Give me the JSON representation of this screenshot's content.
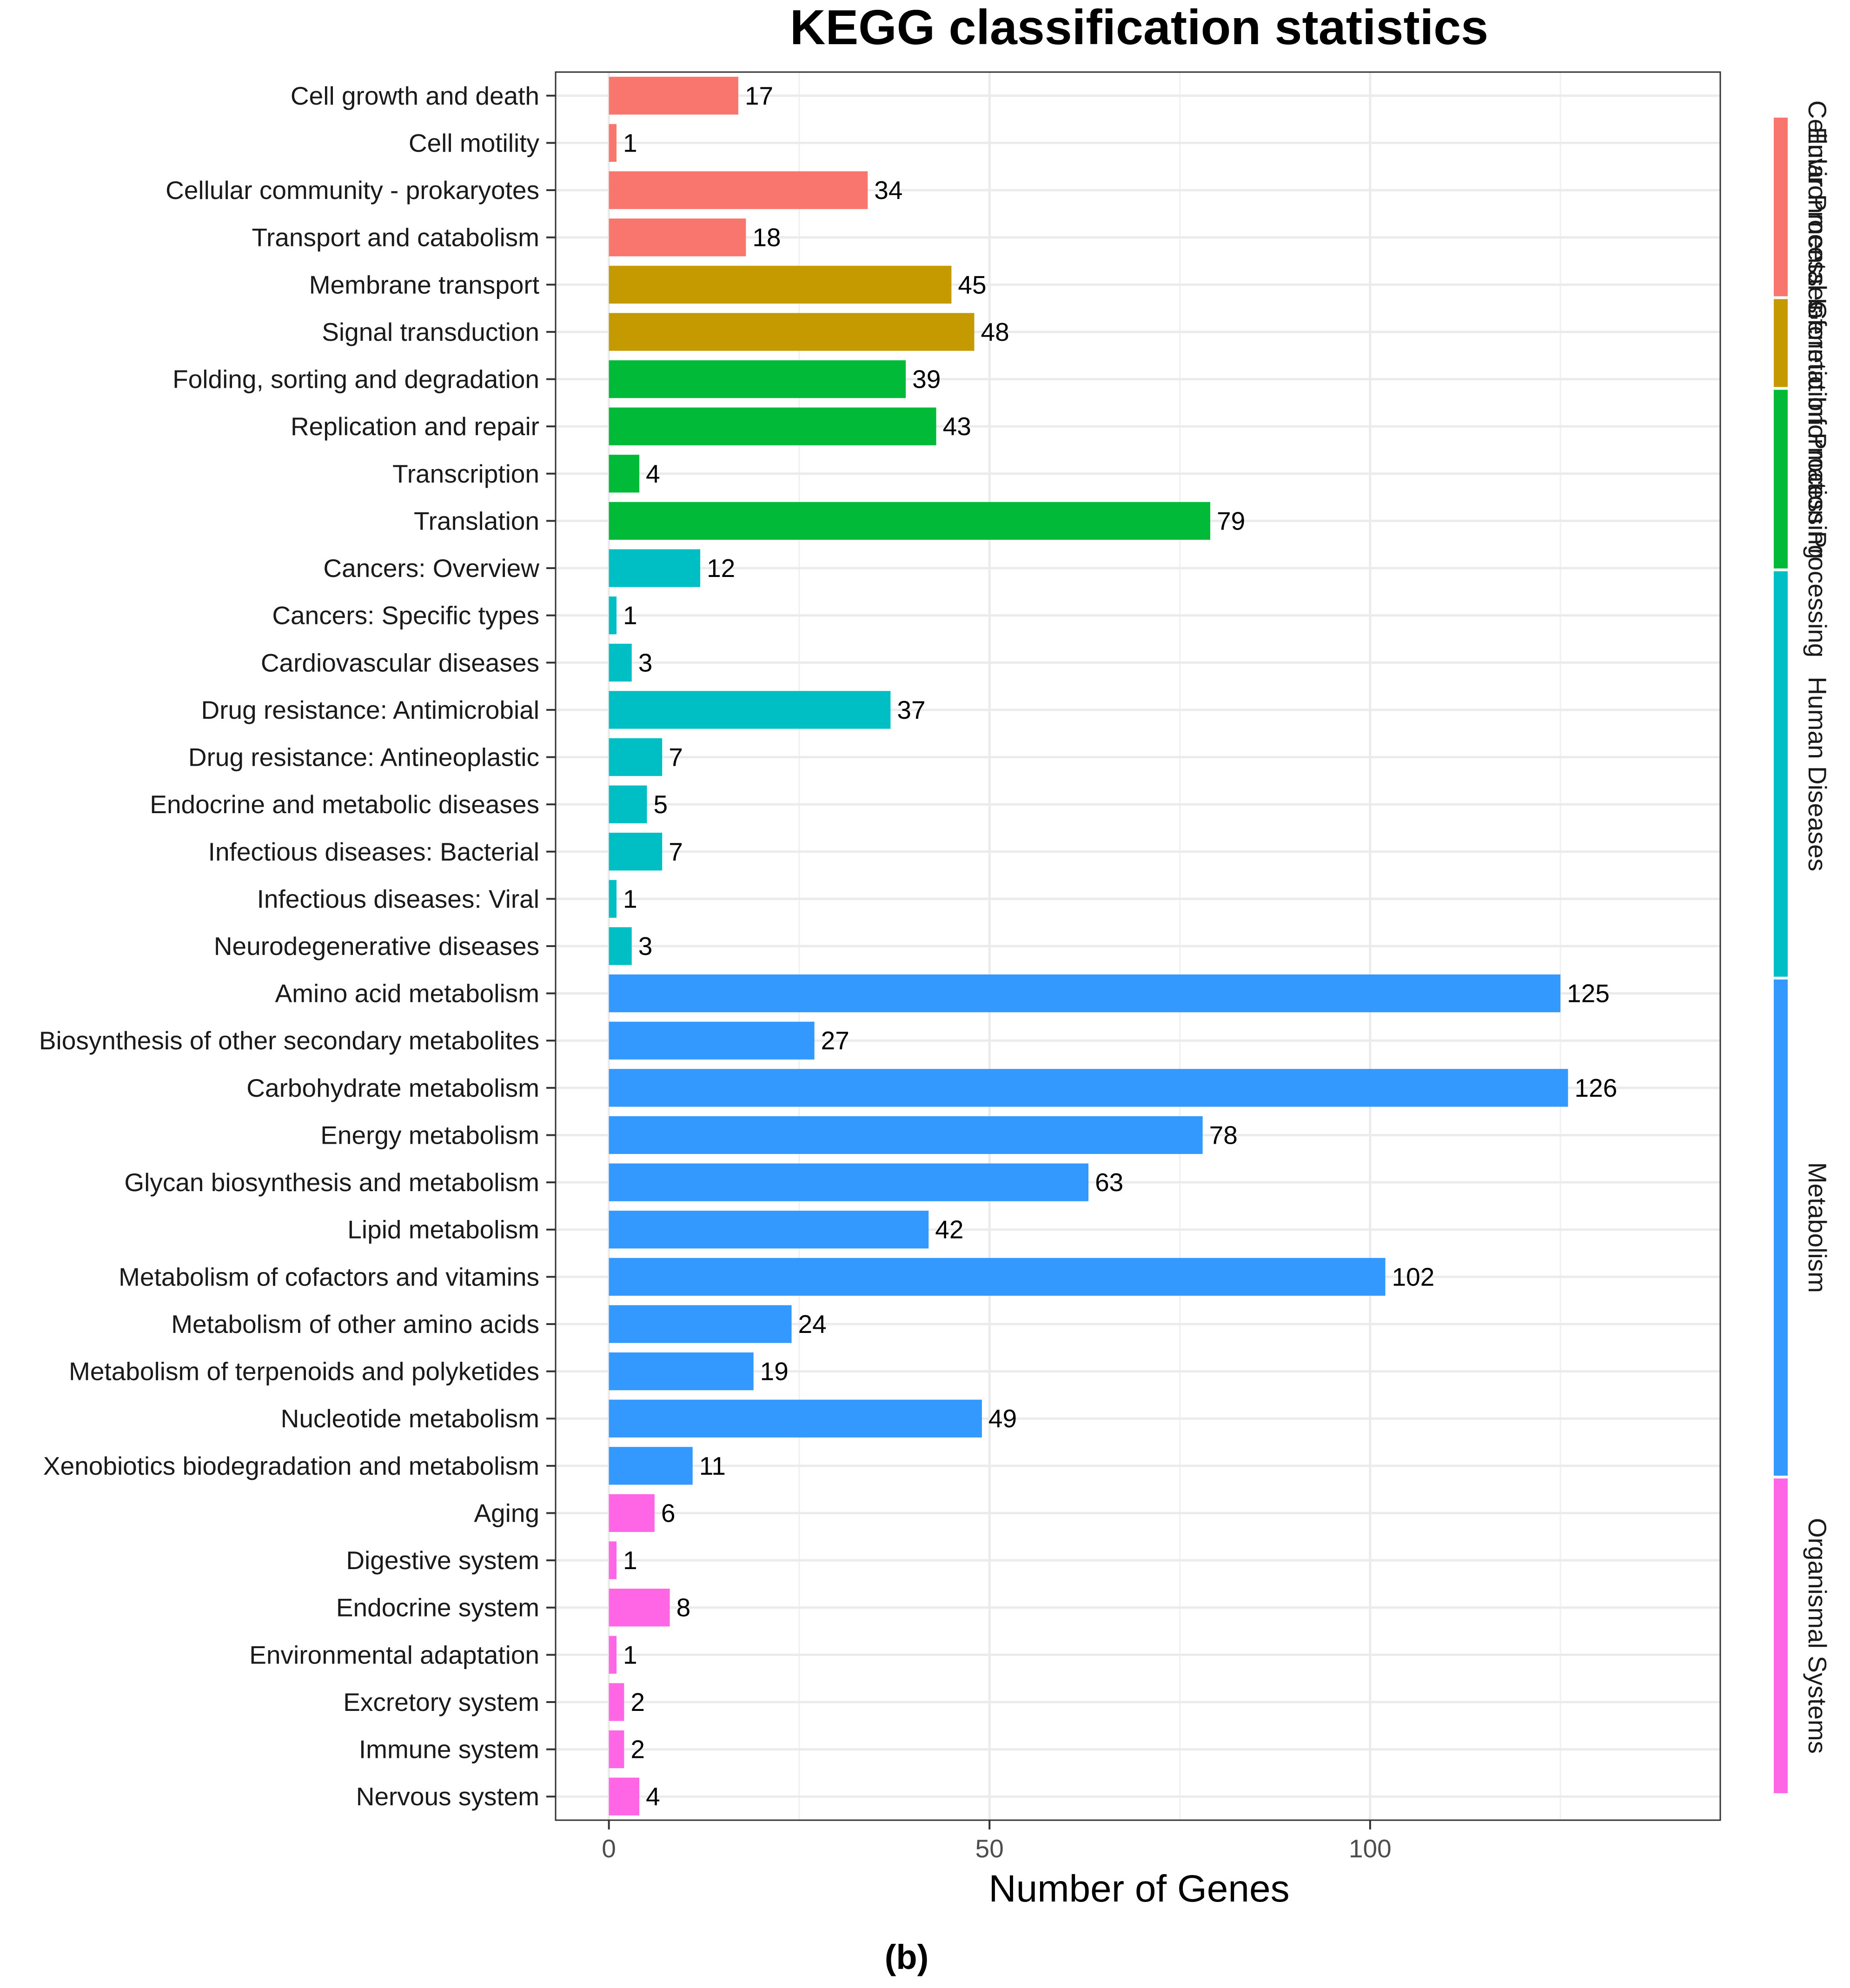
{
  "chart_data": {
    "type": "bar",
    "orientation": "horizontal",
    "title": "KEGG classification statistics",
    "xlabel": "Number of Genes",
    "ylabel": "",
    "xlim": [
      -7,
      146
    ],
    "xticks": [
      0,
      50,
      100
    ],
    "grid": true,
    "caption": "(b)",
    "categories": [
      "Cell growth and death",
      "Cell motility",
      "Cellular community - prokaryotes",
      "Transport and catabolism",
      "Membrane transport",
      "Signal transduction",
      "Folding, sorting and degradation",
      "Replication and repair",
      "Transcription",
      "Translation",
      "Cancers: Overview",
      "Cancers: Specific types",
      "Cardiovascular diseases",
      "Drug resistance: Antimicrobial",
      "Drug resistance: Antineoplastic",
      "Endocrine and metabolic diseases",
      "Infectious diseases: Bacterial",
      "Infectious diseases: Viral",
      "Neurodegenerative diseases",
      "Amino acid metabolism",
      "Biosynthesis of other secondary metabolites",
      "Carbohydrate metabolism",
      "Energy metabolism",
      "Glycan biosynthesis and metabolism",
      "Lipid metabolism",
      "Metabolism of cofactors and vitamins",
      "Metabolism of other amino acids",
      "Metabolism of terpenoids and polyketides",
      "Nucleotide metabolism",
      "Xenobiotics biodegradation and metabolism",
      "Aging",
      "Digestive system",
      "Endocrine system",
      "Environmental adaptation",
      "Excretory system",
      "Immune system",
      "Nervous system"
    ],
    "values": [
      17,
      1,
      34,
      18,
      45,
      48,
      39,
      43,
      4,
      79,
      12,
      1,
      3,
      37,
      7,
      5,
      7,
      1,
      3,
      125,
      27,
      126,
      78,
      63,
      42,
      102,
      24,
      19,
      49,
      11,
      6,
      1,
      8,
      1,
      2,
      2,
      4
    ],
    "groups": [
      {
        "name": "Cellular Processes",
        "color": "#F8766D",
        "count": 4
      },
      {
        "name": "Environmental Information Processing",
        "color": "#C49A00",
        "count": 2
      },
      {
        "name": "Genetic Information Processing",
        "color": "#00BA38",
        "count": 4
      },
      {
        "name": "Human Diseases",
        "color": "#00BFC4",
        "count": 9
      },
      {
        "name": "Metabolism",
        "color": "#3399FF",
        "count": 11
      },
      {
        "name": "Organismal Systems",
        "color": "#FF66E6",
        "count": 7
      }
    ]
  }
}
